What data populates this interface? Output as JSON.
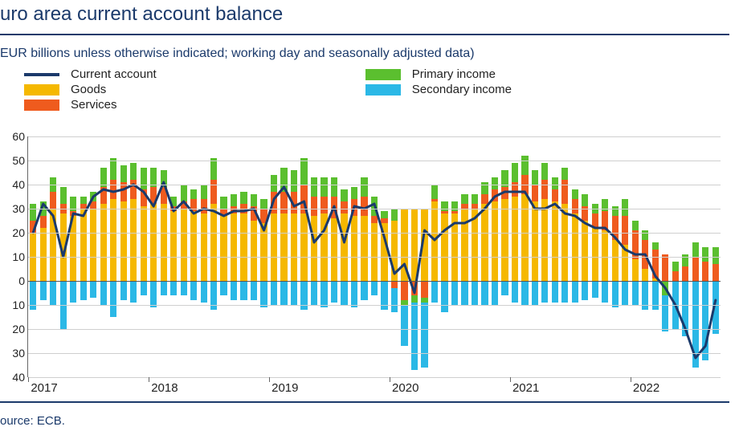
{
  "title": "uro area current account balance",
  "subtitle": "EUR billions unless otherwise indicated; working day and seasonally adjusted data)",
  "source": "ource: ECB.",
  "colors": {
    "title": "#1b3a6b",
    "rule": "#1b3a6b",
    "grid": "#cfcfcf",
    "axis": "#555555",
    "text": "#222222",
    "background": "#ffffff"
  },
  "legend": {
    "col1": [
      {
        "key": "current_account",
        "label": "Current account",
        "swatch": "line",
        "color": "#1b3a6b"
      },
      {
        "key": "goods",
        "label": "Goods",
        "swatch": "box",
        "color": "#f5b800"
      },
      {
        "key": "services",
        "label": "Services",
        "swatch": "box",
        "color": "#ef5b1e"
      }
    ],
    "col2": [
      {
        "key": "primary_income",
        "label": "Primary income",
        "swatch": "box",
        "color": "#5bbf2f"
      },
      {
        "key": "secondary_income",
        "label": "Secondary income",
        "swatch": "box",
        "color": "#2bb8e6"
      }
    ]
  },
  "chart": {
    "type": "stacked-bar-with-line",
    "y_axis": {
      "min": -40,
      "max": 60,
      "step": 10,
      "label_style_dropminus": true
    },
    "x_axis": {
      "start_year": 2017,
      "months_per_year": 12,
      "tick_years": [
        2017,
        2018,
        2019,
        2020,
        2021,
        2022
      ]
    },
    "series_colors": {
      "goods": "#f5b800",
      "services": "#ef5b1e",
      "primary_income": "#5bbf2f",
      "secondary_income": "#2bb8e6",
      "current_account": "#1b3a6b"
    },
    "line_width": 3,
    "bar_width_ratio": 0.66,
    "columns": [
      "goods",
      "services",
      "primary_income",
      "secondary_income",
      "current_account"
    ],
    "data": [
      [
        20,
        5,
        7,
        -12,
        20
      ],
      [
        22,
        5,
        6,
        -8,
        32
      ],
      [
        30,
        7,
        6,
        -10,
        27
      ],
      [
        28,
        4,
        7,
        -20,
        10
      ],
      [
        27,
        2,
        6,
        -9,
        28
      ],
      [
        30,
        2,
        3,
        -8,
        27
      ],
      [
        30,
        3,
        4,
        -7,
        35
      ],
      [
        32,
        7,
        8,
        -10,
        38
      ],
      [
        34,
        8,
        9,
        -15,
        37
      ],
      [
        33,
        8,
        7,
        -8,
        38
      ],
      [
        34,
        8,
        7,
        -9,
        40
      ],
      [
        31,
        7,
        9,
        -6,
        37
      ],
      [
        32,
        7,
        8,
        -11,
        31
      ],
      [
        32,
        7,
        7,
        -6,
        41
      ],
      [
        29,
        2,
        4,
        -6,
        29
      ],
      [
        30,
        3,
        7,
        -6,
        33
      ],
      [
        29,
        5,
        4,
        -8,
        28
      ],
      [
        28,
        6,
        6,
        -9,
        30
      ],
      [
        32,
        10,
        9,
        -12,
        29
      ],
      [
        27,
        3,
        5,
        -6,
        27
      ],
      [
        28,
        3,
        5,
        -8,
        29
      ],
      [
        28,
        4,
        5,
        -8,
        29
      ],
      [
        25,
        6,
        5,
        -8,
        30
      ],
      [
        24,
        6,
        4,
        -11,
        21
      ],
      [
        28,
        9,
        7,
        -10,
        34
      ],
      [
        28,
        9,
        10,
        -10,
        39
      ],
      [
        28,
        9,
        9,
        -10,
        31
      ],
      [
        28,
        12,
        11,
        -12,
        33
      ],
      [
        27,
        8,
        8,
        -10,
        16
      ],
      [
        28,
        7,
        8,
        -11,
        21
      ],
      [
        26,
        9,
        8,
        -9,
        31
      ],
      [
        28,
        5,
        5,
        -10,
        16
      ],
      [
        27,
        7,
        5,
        -11,
        31
      ],
      [
        27,
        8,
        8,
        -8,
        30
      ],
      [
        24,
        3,
        8,
        -6,
        32
      ],
      [
        24,
        2,
        3,
        -12,
        18
      ],
      [
        25,
        -3,
        5,
        -10,
        3
      ],
      [
        30,
        -8,
        -2,
        -17,
        7
      ],
      [
        30,
        -6,
        -3,
        -28,
        -5
      ],
      [
        30,
        -7,
        -2,
        -27,
        21
      ],
      [
        33,
        1,
        6,
        -9,
        17
      ],
      [
        28,
        1,
        4,
        -13,
        21
      ],
      [
        28,
        1,
        4,
        -10,
        24
      ],
      [
        30,
        2,
        4,
        -10,
        24
      ],
      [
        30,
        2,
        4,
        -10,
        26
      ],
      [
        32,
        4,
        5,
        -10,
        30
      ],
      [
        33,
        5,
        5,
        -10,
        35
      ],
      [
        34,
        5,
        7,
        -6,
        37
      ],
      [
        35,
        6,
        8,
        -9,
        37
      ],
      [
        36,
        8,
        8,
        -10,
        37
      ],
      [
        33,
        7,
        6,
        -10,
        30
      ],
      [
        34,
        8,
        7,
        -9,
        30
      ],
      [
        33,
        5,
        5,
        -9,
        32
      ],
      [
        32,
        10,
        5,
        -9,
        28
      ],
      [
        28,
        6,
        4,
        -9,
        27
      ],
      [
        25,
        6,
        5,
        -8,
        24
      ],
      [
        22,
        6,
        4,
        -7,
        22
      ],
      [
        21,
        8,
        5,
        -9,
        22
      ],
      [
        17,
        10,
        4,
        -11,
        18
      ],
      [
        15,
        12,
        7,
        -10,
        13
      ],
      [
        9,
        12,
        4,
        -10,
        11
      ],
      [
        5,
        12,
        4,
        -12,
        11
      ],
      [
        1,
        12,
        3,
        -12,
        2
      ],
      [
        0,
        11,
        -6,
        -15,
        -3
      ],
      [
        0,
        4,
        4,
        -20,
        -10
      ],
      [
        0,
        6,
        5,
        -23,
        -20
      ],
      [
        0,
        10,
        6,
        -36,
        -32
      ],
      [
        0,
        8,
        6,
        -33,
        -27
      ],
      [
        0,
        7,
        7,
        -22,
        -8
      ]
    ]
  }
}
